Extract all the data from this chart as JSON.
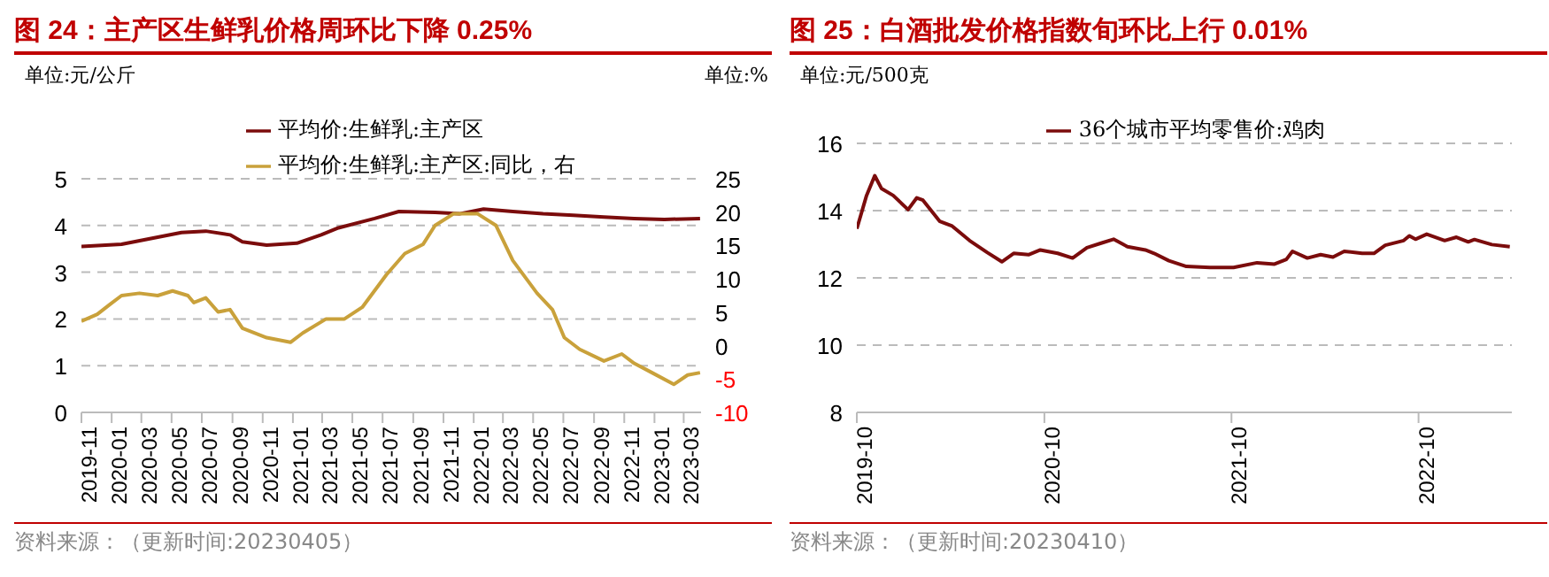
{
  "chart_data": [
    {
      "type": "line",
      "title": "图 24：主产区生鲜乳价格周环比下降 0.25%",
      "ylabel": "单位:元/公斤",
      "y2label": "单位:%",
      "xlim": [
        "2019-11-01",
        "2023-04-05"
      ],
      "xticks": [
        "2019-11",
        "2020-01",
        "2020-03",
        "2020-05",
        "2020-07",
        "2020-09",
        "2020-11",
        "2021-01",
        "2021-03",
        "2021-05",
        "2021-07",
        "2021-09",
        "2021-11",
        "2022-01",
        "2022-03",
        "2022-05",
        "2022-07",
        "2022-09",
        "2022-11",
        "2023-01",
        "2023-03"
      ],
      "ylim": [
        0,
        5
      ],
      "yticks": [
        0,
        1,
        2,
        3,
        4,
        5
      ],
      "y2lim": [
        -10,
        25
      ],
      "y2ticks": [
        -10,
        -5,
        0,
        5,
        10,
        15,
        20,
        25
      ],
      "grid": "y",
      "legend": "top",
      "line_style": "solid",
      "marker": "none",
      "series": [
        {
          "name": "平均价:生鲜乳:主产区",
          "color": "#7b0c0c",
          "x": [
            "2019-11-01",
            "2020-01-21",
            "2020-05-21",
            "2020-07-09",
            "2020-08-27",
            "2020-09-21",
            "2020-11-09",
            "2021-01-09",
            "2021-02-27",
            "2021-04-03",
            "2021-06-15",
            "2021-08-03",
            "2021-10-15",
            "2021-12-03",
            "2022-01-21",
            "2022-03-21",
            "2022-05-21",
            "2022-07-21",
            "2022-09-21",
            "2022-11-21",
            "2023-01-21",
            "2023-04-03"
          ],
          "values": [
            3.55,
            3.6,
            3.85,
            3.88,
            3.8,
            3.65,
            3.58,
            3.62,
            3.8,
            3.95,
            4.15,
            4.3,
            4.28,
            4.25,
            4.35,
            4.3,
            4.25,
            4.22,
            4.18,
            4.15,
            4.13,
            4.15
          ]
        },
        {
          "name": "平均价:生鲜乳:主产区:同比，右",
          "color": "#c9a13b",
          "axis": "y2",
          "x": [
            "2019-11-01",
            "2019-12-03",
            "2019-12-27",
            "2020-01-21",
            "2020-02-26",
            "2020-04-03",
            "2020-05-03",
            "2020-06-03",
            "2020-06-15",
            "2020-07-09",
            "2020-08-03",
            "2020-08-27",
            "2020-09-21",
            "2020-11-09",
            "2020-12-27",
            "2021-01-21",
            "2021-03-09",
            "2021-04-15",
            "2021-05-21",
            "2021-07-09",
            "2021-08-15",
            "2021-09-21",
            "2021-10-15",
            "2021-11-21",
            "2022-01-09",
            "2022-02-15",
            "2022-03-21",
            "2022-05-09",
            "2022-06-09",
            "2022-07-03",
            "2022-08-03",
            "2022-09-21",
            "2022-10-27",
            "2022-11-21",
            "2022-12-27",
            "2023-02-09",
            "2023-03-09",
            "2023-04-03"
          ],
          "values": [
            3.65,
            4.7,
            6.1,
            7.5,
            7.85,
            7.5,
            8.2,
            7.5,
            6.45,
            7.15,
            5.05,
            5.4,
            2.6,
            1.2,
            0.5,
            1.9,
            4,
            4,
            5.75,
            10.65,
            13.8,
            15.2,
            18,
            19.75,
            19.75,
            18,
            12.75,
            7.85,
            5.4,
            1.2,
            -0.55,
            -2.3,
            -1.25,
            -2.65,
            -4.05,
            -5.8,
            -4.4,
            -4.05
          ]
        }
      ],
      "annotations": [
        "资料来源：（更新时间:20230405）"
      ]
    },
    {
      "type": "line",
      "title": "图 25：白酒批发价格指数旬环比上行 0.01%",
      "ylabel": "单位:元/500克",
      "xlim": [
        "2019-10-01",
        "2023-04-01"
      ],
      "xticks": [
        "2019-10",
        "2020-10",
        "2021-10",
        "2022-10"
      ],
      "ylim": [
        8,
        16
      ],
      "yticks": [
        8,
        10,
        12,
        14,
        16
      ],
      "grid": "y",
      "legend": "top",
      "line_style": "solid",
      "marker": "none",
      "series": [
        {
          "name": "36个城市平均零售价:鸡肉",
          "color": "#7b0c0c",
          "x": [
            "2019-10-01",
            "2019-10-20",
            "2019-11-05",
            "2019-11-18",
            "2019-12-11",
            "2020-01-09",
            "2020-01-26",
            "2020-02-07",
            "2020-03-11",
            "2020-04-04",
            "2020-05-08",
            "2020-06-11",
            "2020-07-10",
            "2020-08-02",
            "2020-08-31",
            "2020-09-23",
            "2020-10-27",
            "2020-11-25",
            "2020-12-23",
            "2021-01-21",
            "2021-02-13",
            "2021-03-12",
            "2021-04-16",
            "2021-05-03",
            "2021-06-01",
            "2021-07-05",
            "2021-08-20",
            "2021-10-05",
            "2021-11-20",
            "2021-12-24",
            "2022-01-16",
            "2022-01-28",
            "2022-02-26",
            "2022-03-24",
            "2022-04-17",
            "2022-05-09",
            "2022-06-13",
            "2022-07-06",
            "2022-07-28",
            "2022-09-02",
            "2022-09-13",
            "2022-09-25",
            "2022-10-17",
            "2022-11-21",
            "2022-12-14",
            "2023-01-06",
            "2023-01-18",
            "2023-02-21",
            "2023-03-28"
          ],
          "values": [
            13.46,
            14.45,
            15.04,
            14.66,
            14.45,
            14.03,
            14.38,
            14.31,
            13.68,
            13.54,
            13.11,
            12.76,
            12.48,
            12.73,
            12.69,
            12.83,
            12.73,
            12.59,
            12.9,
            13.04,
            13.15,
            12.93,
            12.83,
            12.73,
            12.51,
            12.34,
            12.31,
            12.31,
            12.45,
            12.41,
            12.55,
            12.79,
            12.59,
            12.69,
            12.62,
            12.79,
            12.73,
            12.73,
            12.97,
            13.11,
            13.25,
            13.15,
            13.3,
            13.11,
            13.21,
            13.07,
            13.14,
            12.99,
            12.93
          ]
        }
      ],
      "annotations": [
        "资料来源：（更新时间:20230410）"
      ]
    }
  ]
}
